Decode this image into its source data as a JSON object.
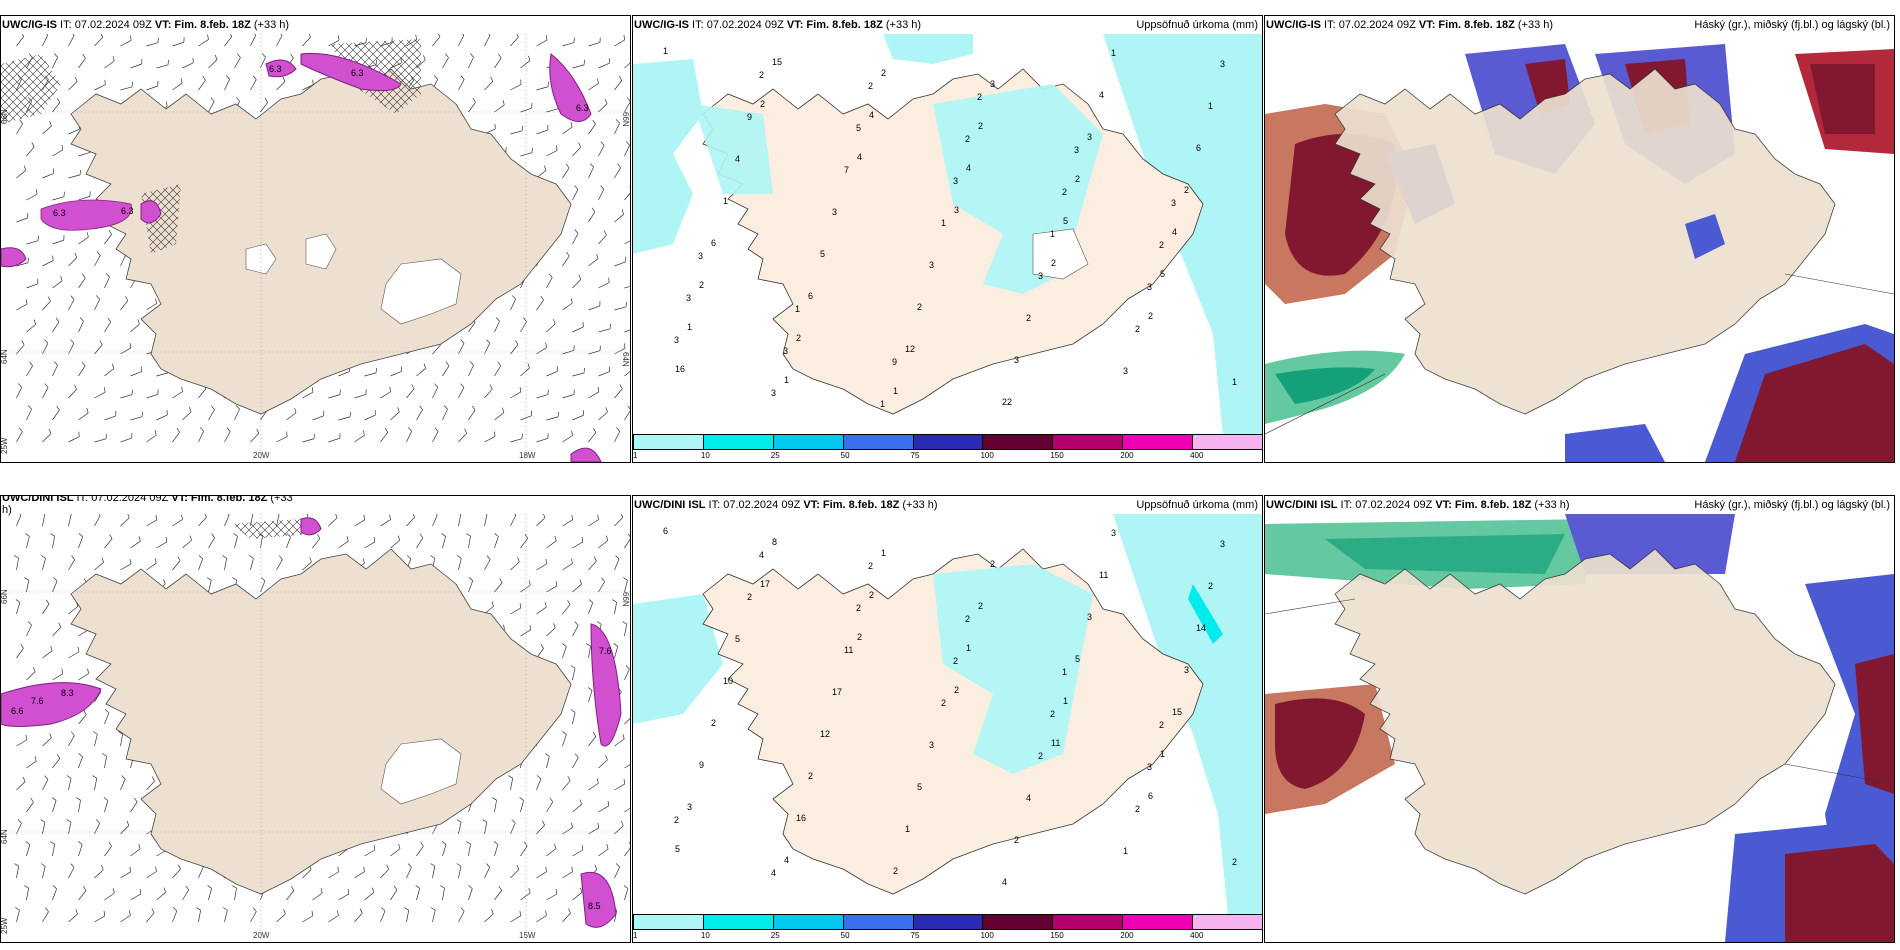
{
  "panels": [
    {
      "id": "p1",
      "title_model": "UWC/IG-IS",
      "title_it": " IT: 07.02.2024 09Z ",
      "title_vt": "VT: Fim. 8.feb. 18Z",
      "title_lead": " (+33 h)",
      "right_title": ""
    },
    {
      "id": "p2",
      "title_model": "UWC/IG-IS",
      "title_it": " IT: 07.02.2024 09Z ",
      "title_vt": "VT: Fim. 8.feb. 18Z",
      "title_lead": " (+33 h)",
      "right_title": "Uppsöfnuð úrkoma (mm)"
    },
    {
      "id": "p3",
      "title_model": "UWC/IG-IS",
      "title_it": " IT: 07.02.2024 09Z ",
      "title_vt": "VT: Fim. 8.feb. 18Z",
      "title_lead": " (+33 h)",
      "right_title": "Háský (gr.), miðský (fj.bl.) og lágský (bl.)"
    },
    {
      "id": "p4",
      "title_model": "UWC/DINI ISL",
      "title_it": " IT: 07.02.2024 09Z ",
      "title_vt": "VT: Fim. 8.feb. 18Z",
      "title_lead": " (+33",
      "right_title": ""
    },
    {
      "id": "p5",
      "title_model": "UWC/DINI ISL",
      "title_it": " IT: 07.02.2024 09Z ",
      "title_vt": "VT: Fim. 8.feb. 18Z",
      "title_lead": " (+33 h)",
      "right_title": "Uppsöfnuð úrkoma (mm)"
    },
    {
      "id": "p6",
      "title_model": "UWC/DINI ISL",
      "title_it": " IT: 07.02.2024 09Z ",
      "title_vt": "VT: Fim. 8.feb. 18Z",
      "title_lead": " (+33 h)",
      "right_title": "Háský (gr.), miðský (fj.bl.) og lágský (bl.)"
    }
  ],
  "p4_wrap": "h)",
  "axis_labels": {
    "lat66": "66N",
    "lat64": "64N",
    "lon20": "20W",
    "lon15": "15W",
    "lon18": "18W",
    "lon25": "25W"
  },
  "legend": {
    "colors": [
      "#aff5f5",
      "#00ecec",
      "#00c8f0",
      "#3c6ef0",
      "#2a2ab4",
      "#640032",
      "#b4006e",
      "#f000b4",
      "#f5b4f0"
    ],
    "labels": [
      "1",
      "10",
      "25",
      "50",
      "75",
      "100",
      "150",
      "200",
      "400"
    ]
  },
  "precip_labels_top": [
    "1",
    "2",
    "4",
    "3",
    "2",
    "2",
    "16",
    "15",
    "4",
    "4",
    "5",
    "5",
    "1",
    "1",
    "2",
    "2",
    "2",
    "4",
    "2",
    "2",
    "1",
    "3",
    "3",
    "2",
    "6",
    "6",
    "12",
    "22",
    "4",
    "6",
    "1",
    "5",
    "2",
    "3",
    "1",
    "1",
    "4",
    "3",
    "3",
    "2",
    "3",
    "3",
    "9",
    "7",
    "1",
    "3",
    "2",
    "1",
    "2",
    "5",
    "3",
    "1",
    "3",
    "3",
    "3",
    "2",
    "2",
    "2",
    "2",
    "3",
    "3",
    "1",
    "2",
    "3",
    "3",
    "3",
    "1",
    "9"
  ],
  "precip_labels_bottom": [
    "6",
    "17",
    "2",
    "2",
    "11",
    "6",
    "5",
    "8",
    "2",
    "1",
    "1",
    "1",
    "3",
    "4",
    "1",
    "2",
    "5",
    "15",
    "9",
    "16",
    "2",
    "2",
    "3",
    "3",
    "2",
    "2",
    "1",
    "4",
    "11",
    "14",
    "10",
    "12",
    "5",
    "2",
    "3",
    "2",
    "5",
    "17",
    "3",
    "4",
    "1",
    "3",
    "2",
    "11",
    "2",
    "2",
    "2",
    "2",
    "4",
    "2",
    "2",
    "2",
    "3",
    "2",
    "4",
    "2",
    "2",
    "1",
    "2"
  ],
  "wind_labels_top": [
    "6.3",
    "6.3",
    "6.3",
    "6.3",
    "6.3"
  ],
  "wind_labels_bottom": [
    "7.6",
    "8.3",
    "6.6",
    "7.6",
    "8.5"
  ]
}
